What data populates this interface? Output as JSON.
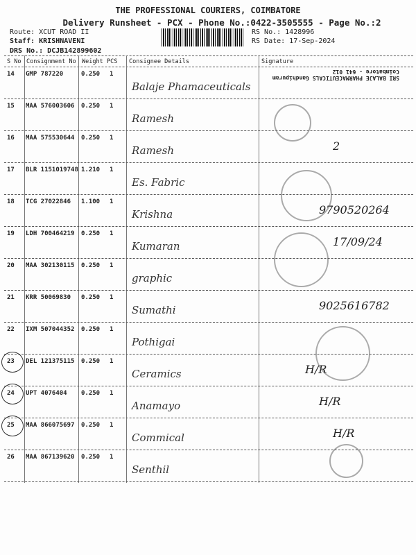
{
  "header": {
    "company": "THE PROFESSIONAL COURIERS, COIMBATORE",
    "subtitle": "Delivery Runsheet - PCX - Phone No.:0422-3505555 - Page No.:2",
    "route": "Route: XCUT ROAD II",
    "staff": "Staff: KRISHNAVENI",
    "drs": "DRS No.: DCJB142899602",
    "rs_no": "RS No.: 1428996",
    "rs_date": "RS Date: 17-Sep-2024"
  },
  "table": {
    "columns": [
      "S No",
      "Consignment No",
      "Weight",
      "PCS",
      "Consignee Details",
      "Signature"
    ],
    "rows": [
      {
        "sno": "14",
        "cn": "GMP 787220",
        "weight": "0.250",
        "pcs": "1",
        "consignee": "Balaje Phamaceuticals",
        "signature": "SRI BALAJE PHARMACEUTICALS Gandhipuram Coimbatore - 641 012"
      },
      {
        "sno": "15",
        "cn": "MAA 576003606",
        "weight": "0.250",
        "pcs": "1",
        "consignee": "Ramesh",
        "signature": ""
      },
      {
        "sno": "16",
        "cn": "MAA 575530644",
        "weight": "0.250",
        "pcs": "1",
        "consignee": "Ramesh",
        "signature": "2"
      },
      {
        "sno": "17",
        "cn": "BLR 1151019748",
        "weight": "1.210",
        "pcs": "1",
        "consignee": "Es. Fabric",
        "signature": ""
      },
      {
        "sno": "18",
        "cn": "TCG 27022846",
        "weight": "1.100",
        "pcs": "1",
        "consignee": "Krishna",
        "signature": "9790520264"
      },
      {
        "sno": "19",
        "cn": "LDH 700464219",
        "weight": "0.250",
        "pcs": "1",
        "consignee": "Kumaran",
        "signature": "17/09/24"
      },
      {
        "sno": "20",
        "cn": "MAA 302130115",
        "weight": "0.250",
        "pcs": "1",
        "consignee": "graphic",
        "signature": ""
      },
      {
        "sno": "21",
        "cn": "KRR 50069830",
        "weight": "0.250",
        "pcs": "1",
        "consignee": "Sumathi",
        "signature": "9025616782"
      },
      {
        "sno": "22",
        "cn": "IXM 507044352",
        "weight": "0.250",
        "pcs": "1",
        "consignee": "Pothigai",
        "signature": ""
      },
      {
        "sno": "23",
        "cn": "DEL 121375115",
        "weight": "0.250",
        "pcs": "1",
        "consignee": "Ceramics",
        "signature": "H/R"
      },
      {
        "sno": "24",
        "cn": "UPT 4076404",
        "weight": "0.250",
        "pcs": "1",
        "consignee": "Anamayo",
        "signature": "H/R"
      },
      {
        "sno": "25",
        "cn": "MAA 866075697",
        "weight": "0.250",
        "pcs": "1",
        "consignee": "Commical",
        "signature": "H/R"
      },
      {
        "sno": "26",
        "cn": "MAA 867139620",
        "weight": "0.250",
        "pcs": "1",
        "consignee": "Senthil",
        "signature": ""
      }
    ]
  },
  "circled_rows": [
    "23",
    "24",
    "25"
  ]
}
